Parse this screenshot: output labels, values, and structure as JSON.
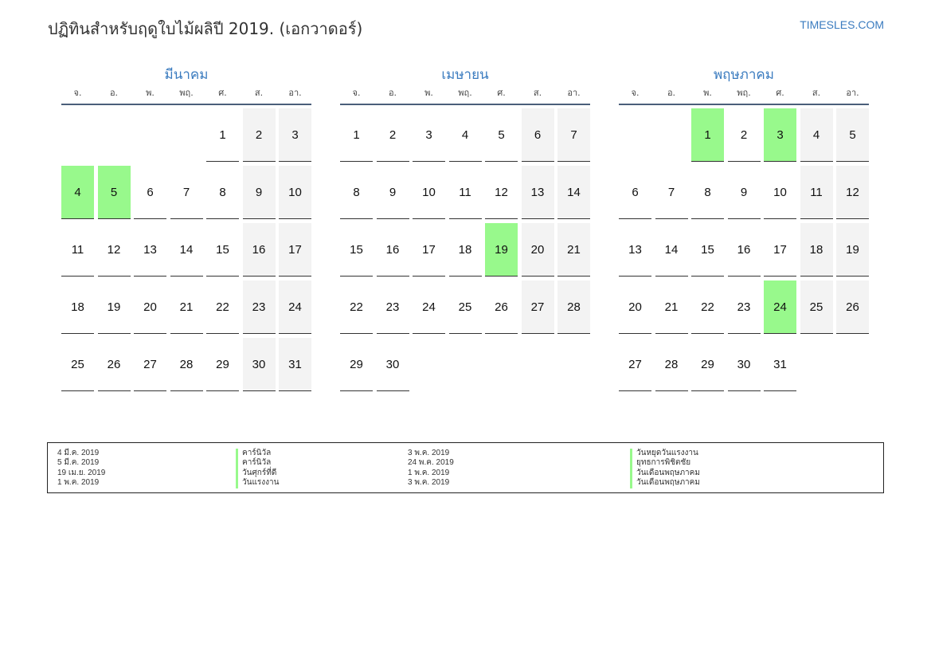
{
  "header": {
    "title": "ปฏิทินสำหรับฤดูใบไม้ผลิปี 2019. (เอกวาดอร์)",
    "brand": "TIMESLES.COM"
  },
  "weekdays": [
    "จ.",
    "อ.",
    "พ.",
    "พฤ.",
    "ศ.",
    "ส.",
    "อา."
  ],
  "months": [
    {
      "name": "มีนาคม",
      "offset": 4,
      "days": 31,
      "holidays": [
        4,
        5
      ]
    },
    {
      "name": "เมษายน",
      "offset": 0,
      "days": 30,
      "holidays": [
        19
      ]
    },
    {
      "name": "พฤษภาคม",
      "offset": 2,
      "days": 31,
      "holidays": [
        1,
        3,
        24
      ]
    }
  ],
  "legend": {
    "left": [
      {
        "date": "4 มี.ค. 2019",
        "name": "คาร์นิวัล"
      },
      {
        "date": "5 มี.ค. 2019",
        "name": "คาร์นิวัล"
      },
      {
        "date": "19 เม.ย. 2019",
        "name": "วันศุกร์ที่ดี"
      },
      {
        "date": "1 พ.ค. 2019",
        "name": "วันแรงงาน"
      }
    ],
    "right": [
      {
        "date": "3 พ.ค. 2019",
        "name": "วันหยุดวันแรงงาน"
      },
      {
        "date": "24 พ.ค. 2019",
        "name": "ยุทธการพิชิตชัย"
      },
      {
        "date": "1 พ.ค. 2019",
        "name": "วันเดือนพฤษภาคม"
      },
      {
        "date": "3 พ.ค. 2019",
        "name": "วันเดือนพฤษภาคม"
      }
    ]
  },
  "colors": {
    "holiday": "#98f98c",
    "weekend": "#f3f3f3",
    "accent": "#3a7bbf"
  }
}
